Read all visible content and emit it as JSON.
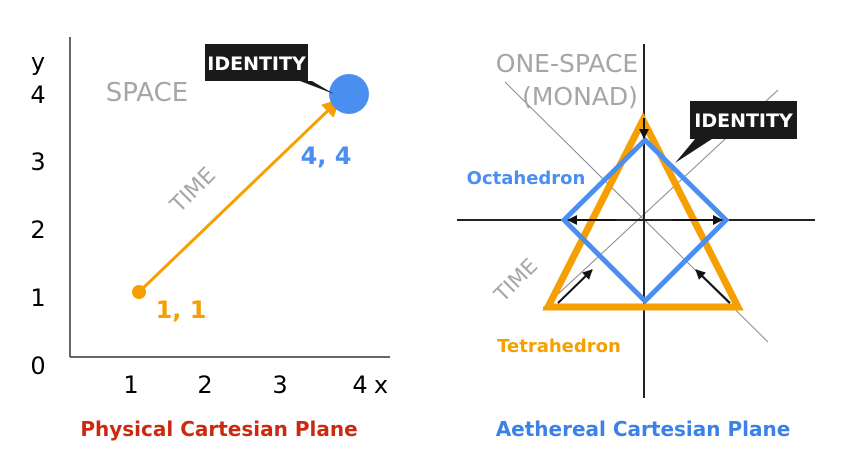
{
  "left_panel": {
    "caption": "Physical Cartesian Plane",
    "y_axis_label": "y",
    "x_axis_label": "x",
    "y_ticks": [
      "4",
      "3",
      "2",
      "1",
      "0"
    ],
    "x_ticks": [
      "1",
      "2",
      "3",
      "4"
    ],
    "space_label": "SPACE",
    "time_label": "TIME",
    "identity_label": "IDENTITY",
    "start_point_label": "1, 1",
    "end_point_label": "4, 4"
  },
  "right_panel": {
    "caption": "Aethereal Cartesian Plane",
    "one_space_line1": "ONE-SPACE",
    "one_space_line2": "(MONAD)",
    "identity_label": "IDENTITY",
    "octahedron_label": "Octahedron",
    "tetrahedron_label": "Tetrahedron",
    "time_label": "TIME"
  },
  "colors": {
    "orange": "#f5a000",
    "blue": "#4a8ef0",
    "red_caption": "#cc2a10",
    "blue_caption": "#3a82e8",
    "gray": "#a6a6a6",
    "callout_bg": "#1a1a1a"
  }
}
